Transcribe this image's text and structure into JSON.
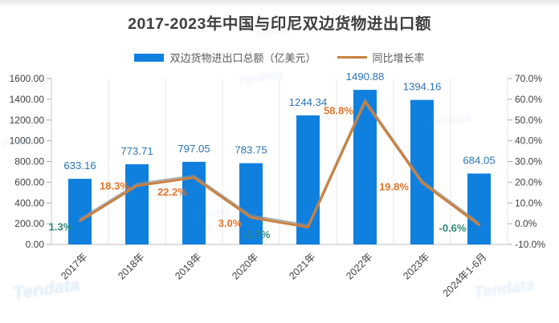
{
  "watermark": {
    "text": "Tendata"
  },
  "colors": {
    "bar": "#1080DF",
    "bar_label": "#2E74B5",
    "line": "#C9813F",
    "line_shadow": "#909090",
    "line_label_orange": "#E2752B",
    "line_label_green": "#2E8876",
    "axis_text": "#3F3F3F",
    "grid": "#E4E4E4",
    "axis_line": "#C9C9C9",
    "title": "#3E3E3E",
    "watermark": "#5B9BD5"
  },
  "chart_data": {
    "type": "bar+line combo",
    "title": "2017-2023年中国与印尼双边货物进出口额",
    "categories": [
      "2017年",
      "2018年",
      "2019年",
      "2020年",
      "2021年",
      "2022年",
      "2023年",
      "2024年1-6月"
    ],
    "series": [
      {
        "name": "双边货物进出口总额（亿美元）",
        "type": "bar",
        "yaxis": "left",
        "color": "#1080DF",
        "values": [
          633.16,
          773.71,
          797.05,
          783.75,
          1244.34,
          1490.88,
          1394.16,
          684.05
        ],
        "data_labels": [
          "633.16",
          "773.71",
          "797.05",
          "783.75",
          "1244.34",
          "1490.88",
          "1394.16",
          "684.05"
        ]
      },
      {
        "name": "同比增长率",
        "type": "line",
        "yaxis": "right",
        "color": "#C9813F",
        "values": [
          1.3,
          18.3,
          22.2,
          3.0,
          -1.7,
          58.8,
          19.8,
          -0.6
        ],
        "data_labels": [
          "1.3%",
          "18.3%",
          "22.2%",
          "3.0%",
          "-1.7%",
          "58.8%",
          "19.8%",
          "-0.6%"
        ],
        "label_colors": [
          "#2E8876",
          "#E2752B",
          "#E2752B",
          "#E2752B",
          "#2E8876",
          "#E2752B",
          "#E2752B",
          "#2E8876"
        ]
      }
    ],
    "legend": [
      {
        "label": "双边货物进出口总额（亿美元）",
        "swatch": "bar",
        "color": "#1080DF"
      },
      {
        "label": "同比增长率",
        "swatch": "line",
        "color": "#C9813F"
      }
    ],
    "left_axis": {
      "min": 0,
      "max": 1600,
      "step": 200,
      "tick_labels": [
        "1600.00",
        "1400.00",
        "1200.00",
        "1000.00",
        "800.00",
        "600.00",
        "400.00",
        "200.00",
        "0.00"
      ]
    },
    "right_axis": {
      "min": -10,
      "max": 70,
      "step": 10,
      "tick_labels": [
        "70.0%",
        "60.0%",
        "50.0%",
        "40.0%",
        "30.0%",
        "20.0%",
        "10.0%",
        "0.0%",
        "-10.0%"
      ]
    },
    "grid": {
      "vertical": true,
      "horizontal": false
    },
    "legend_position": "top"
  }
}
